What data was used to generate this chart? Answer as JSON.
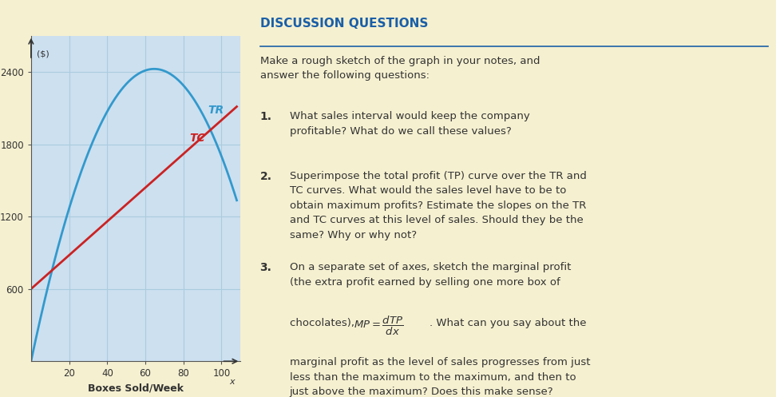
{
  "background_color": "#f5f0d0",
  "plot_bg_color": "#cce0f0",
  "grid_color": "#aaccdd",
  "tr_color": "#3399cc",
  "tc_color": "#cc2222",
  "label_color": "#333333",
  "title_color": "#1a5fa8",
  "xlabel": "Boxes Sold/Week",
  "ylabel": "TR, TC, TP, ($)",
  "yticks": [
    600,
    1200,
    1800,
    2400
  ],
  "xticks": [
    20,
    40,
    60,
    80,
    100
  ],
  "xlim": [
    0,
    110
  ],
  "ylim": [
    0,
    2700
  ],
  "tr_label": "TR",
  "tc_label": "TC",
  "tr_a": 75,
  "tr_b": 0.58,
  "tc_slope": 14,
  "tc_intercept": 600,
  "font_size_axis": 9,
  "font_size_tick": 8.5,
  "font_size_label": 10,
  "font_size_curve": 10
}
